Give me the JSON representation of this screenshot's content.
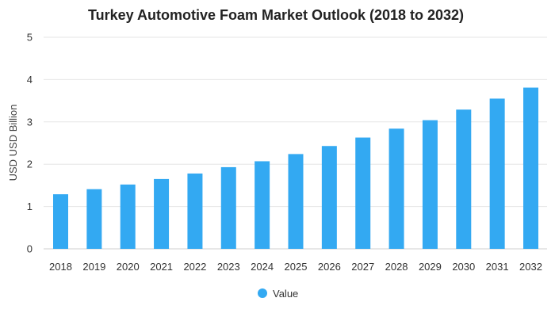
{
  "chart_data": {
    "type": "bar",
    "title": "Turkey Automotive Foam Market Outlook (2018 to 2032)",
    "xlabel": "",
    "ylabel": "USD USD Billion",
    "categories": [
      "2018",
      "2019",
      "2020",
      "2021",
      "2022",
      "2023",
      "2024",
      "2025",
      "2026",
      "2027",
      "2028",
      "2029",
      "2030",
      "2031",
      "2032"
    ],
    "series": [
      {
        "name": "Value",
        "color": "#33a9f2",
        "values": [
          1.29,
          1.41,
          1.52,
          1.65,
          1.78,
          1.93,
          2.07,
          2.24,
          2.43,
          2.63,
          2.84,
          3.04,
          3.29,
          3.55,
          3.81
        ]
      }
    ],
    "ylim": [
      0,
      5
    ],
    "yticks": [
      0,
      1,
      2,
      3,
      4,
      5
    ],
    "grid": true,
    "legend_position": "bottom-center"
  }
}
